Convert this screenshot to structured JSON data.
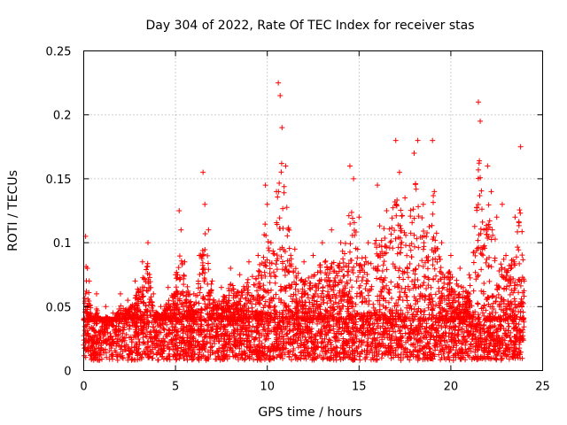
{
  "chart_data": {
    "type": "scatter",
    "title": "Day 304 of 2022, Rate Of TEC Index for receiver stas",
    "xlabel": "GPS time / hours",
    "ylabel": "ROTI / TECUs",
    "xlim": [
      0,
      25
    ],
    "ylim": [
      0,
      0.25
    ],
    "xticks": [
      0,
      5,
      10,
      15,
      20,
      25
    ],
    "yticks": [
      0,
      0.05,
      0.1,
      0.15,
      0.2,
      0.25
    ],
    "xtick_labels": [
      "0",
      "5",
      "10",
      "15",
      "20",
      "25"
    ],
    "ytick_labels": [
      "0",
      "0.05",
      "0.1",
      "0.15",
      "0.2",
      "0.25"
    ],
    "grid": true,
    "marker": "plus",
    "color": "#ff0000",
    "series": [
      {
        "x": [
          0.0,
          0.1,
          0.2,
          0.3,
          0.5,
          0.7,
          1.0,
          1.2,
          1.6,
          2.0,
          2.4,
          2.8,
          3.2,
          3.5,
          3.8,
          4.2,
          4.6,
          5.0,
          5.2,
          5.3,
          5.5,
          6.0,
          6.3,
          6.5,
          6.6,
          6.8,
          7.0,
          7.5,
          8.0,
          8.5,
          9.0,
          9.5,
          9.9,
          10.0,
          10.2,
          10.5,
          10.6,
          10.7,
          10.8,
          11.0,
          11.5,
          12.0,
          12.5,
          13.0,
          13.5,
          14.0,
          14.5,
          14.7,
          15.0,
          15.5,
          16.0,
          16.5,
          17.0,
          17.2,
          17.5,
          18.0,
          18.2,
          18.5,
          19.0,
          19.1,
          19.5,
          20.0,
          20.5,
          21.0,
          21.5,
          21.6,
          21.8,
          22.0,
          22.2,
          22.5,
          22.8,
          23.0,
          23.5,
          23.8,
          24.0
        ],
        "y": [
          0.02,
          0.105,
          0.08,
          0.07,
          0.04,
          0.06,
          0.03,
          0.05,
          0.045,
          0.06,
          0.055,
          0.07,
          0.085,
          0.1,
          0.06,
          0.05,
          0.065,
          0.075,
          0.125,
          0.11,
          0.085,
          0.06,
          0.09,
          0.155,
          0.13,
          0.11,
          0.07,
          0.065,
          0.08,
          0.075,
          0.085,
          0.09,
          0.145,
          0.13,
          0.1,
          0.14,
          0.225,
          0.215,
          0.19,
          0.16,
          0.095,
          0.085,
          0.09,
          0.1,
          0.11,
          0.1,
          0.16,
          0.15,
          0.12,
          0.1,
          0.145,
          0.125,
          0.18,
          0.155,
          0.135,
          0.17,
          0.18,
          0.13,
          0.18,
          0.14,
          0.1,
          0.09,
          0.08,
          0.075,
          0.21,
          0.195,
          0.11,
          0.16,
          0.14,
          0.12,
          0.13,
          0.09,
          0.12,
          0.175,
          0.07
        ],
        "background": {
          "baseline_min": 0.008,
          "baseline_max": 0.04,
          "density": "dense continuous cloud of points from 0 to 24 hours"
        }
      }
    ]
  }
}
